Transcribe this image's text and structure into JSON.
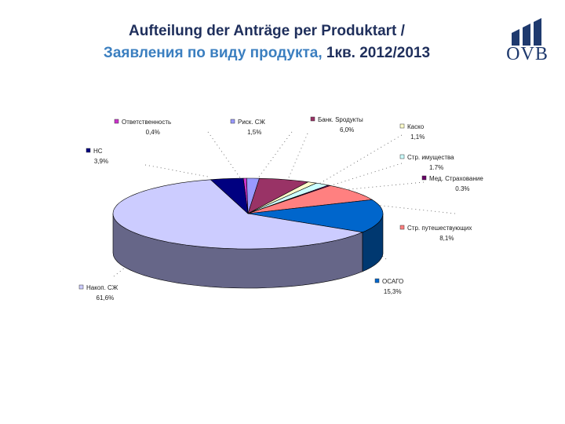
{
  "title": {
    "line1": "Aufteilung der Anträge per Produktart /",
    "line2_ru": "Заявления по виду продукта,",
    "line2_period": " 1кв. 2012/2013"
  },
  "logo": {
    "text": "OVB",
    "color": "#1f3a6e"
  },
  "chart_data": {
    "type": "pie",
    "variant": "3d",
    "slices": [
      {
        "name": "Ответственность",
        "value": 0.4,
        "label": "0,4%",
        "color": "#cc33cc"
      },
      {
        "name": "Риск. СЖ",
        "value": 1.5,
        "label": "1,5%",
        "color": "#9999ff"
      },
      {
        "name": "Банк. Sродукты",
        "value": 6.0,
        "label": "6,0%",
        "color": "#993366"
      },
      {
        "name": "Каско",
        "value": 1.1,
        "label": "1,1%",
        "color": "#ffffcc"
      },
      {
        "name": "Стр. имущества",
        "value": 1.7,
        "label": "1.7%",
        "color": "#ccffff"
      },
      {
        "name": "Мед. Страхование",
        "value": 0.3,
        "label": "0.3%",
        "color": "#660066"
      },
      {
        "name": "Стр. путешествующих",
        "value": 8.1,
        "label": "8,1%",
        "color": "#ff8080"
      },
      {
        "name": "ОСАГО",
        "value": 15.3,
        "label": "15,3%",
        "color": "#0066cc"
      },
      {
        "name": "Накоп. СЖ",
        "value": 61.6,
        "label": "61,6%",
        "color": "#ccccff"
      },
      {
        "name": "НС",
        "value": 3.9,
        "label": "3,9%",
        "color": "#000080"
      }
    ]
  }
}
